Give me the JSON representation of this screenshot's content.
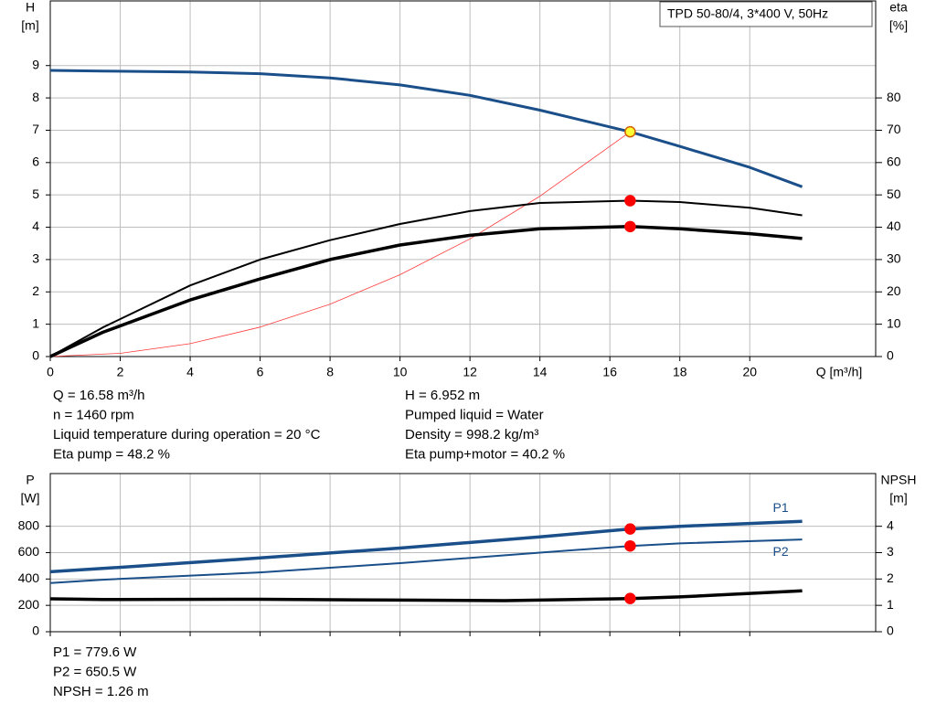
{
  "chart_data": [
    {
      "type": "line",
      "title": "TPD 50-80/4, 3*400 V, 50Hz",
      "ylabel": [
        "H",
        "[m]"
      ],
      "y2label": [
        "eta",
        "[%]"
      ],
      "xlabel": "Q [m³/h]",
      "xlim": [
        0,
        23.6
      ],
      "xticks": [
        0,
        2,
        4,
        6,
        8,
        10,
        12,
        14,
        16,
        18,
        20
      ],
      "xtick_labels": true,
      "ylim": [
        0,
        11
      ],
      "yticks": [
        0,
        1,
        2,
        3,
        4,
        5,
        6,
        7,
        8,
        9
      ],
      "y2lim": [
        0,
        110
      ],
      "y2ticks": [
        0,
        10,
        20,
        30,
        40,
        50,
        60,
        70,
        80
      ],
      "grid": true,
      "series": [
        {
          "type": "line",
          "color": "#ff3b3b",
          "width": 0.8,
          "x": [
            0,
            2,
            4,
            6,
            8,
            10,
            12,
            14,
            16.58
          ],
          "values": [
            0,
            0.1,
            0.4,
            0.91,
            1.62,
            2.53,
            3.64,
            4.96,
            6.952
          ]
        },
        {
          "type": "line",
          "color": "#1a4f8a",
          "width": 3,
          "x": [
            0,
            1.5,
            4,
            6,
            8,
            10,
            12,
            14,
            16.58,
            18,
            20,
            21.5
          ],
          "values": [
            8.85,
            8.83,
            8.8,
            8.75,
            8.62,
            8.4,
            8.08,
            7.62,
            6.952,
            6.5,
            5.85,
            5.25
          ]
        },
        {
          "type": "line",
          "axis": "y2",
          "color": "#000000",
          "width": 2,
          "x": [
            0,
            1.5,
            4,
            6,
            8,
            10,
            12,
            14,
            16.58,
            18,
            20,
            21.5
          ],
          "values": [
            0,
            9,
            22,
            30,
            36,
            41,
            45,
            47.5,
            48.2,
            47.8,
            46,
            43.7
          ]
        },
        {
          "type": "line",
          "axis": "y2",
          "color": "#000000",
          "width": 3.5,
          "x": [
            0,
            1.5,
            4,
            6,
            8,
            10,
            12,
            14,
            16.58,
            18,
            20,
            21.5
          ],
          "values": [
            0,
            7.5,
            17.5,
            24,
            30,
            34.5,
            37.5,
            39.5,
            40.2,
            39.5,
            38,
            36.5
          ]
        },
        {
          "type": "scatter",
          "axis": "y2",
          "color": "#ff0000",
          "x": [
            16.58
          ],
          "values": [
            48.2
          ]
        },
        {
          "type": "scatter",
          "axis": "y2",
          "color": "#ff0000",
          "x": [
            16.58
          ],
          "values": [
            40.2
          ]
        },
        {
          "type": "scatter",
          "color": "#ffff33",
          "edgecolor": "#d06000",
          "x": [
            16.58
          ],
          "values": [
            6.952
          ]
        }
      ],
      "info": [
        [
          "Q = 16.58 m³/h",
          "n = 1460 rpm",
          "Liquid temperature during operation = 20 °C",
          "Eta pump = 48.2 %"
        ],
        [
          "H = 6.952 m",
          "Pumped liquid = Water",
          "Density = 998.2 kg/m³",
          "Eta pump+motor = 40.2 %"
        ]
      ]
    },
    {
      "type": "line",
      "ylabel": [
        "P",
        "[W]"
      ],
      "y2label": [
        "NPSH",
        "[m]"
      ],
      "xlim": [
        0,
        23.6
      ],
      "xticks": [
        0,
        2,
        4,
        6,
        8,
        10,
        12,
        14,
        16,
        18,
        20
      ],
      "xtick_labels": false,
      "ylim": [
        0,
        1200
      ],
      "yticks": [
        0,
        200,
        400,
        600,
        800
      ],
      "y2lim": [
        0,
        6
      ],
      "y2ticks": [
        0,
        1,
        2,
        3,
        4
      ],
      "grid": true,
      "series": [
        {
          "type": "line",
          "name": "P1",
          "color": "#1a4f8a",
          "width": 3.5,
          "x": [
            0,
            1.5,
            6,
            10,
            14,
            16.58,
            18,
            21.5
          ],
          "values": [
            455,
            480,
            560,
            635,
            720,
            779.6,
            800,
            838
          ]
        },
        {
          "type": "line",
          "name": "P2",
          "color": "#1a4f8a",
          "width": 2,
          "x": [
            0,
            1.5,
            6,
            10,
            14,
            16.58,
            18,
            21.5
          ],
          "values": [
            370,
            395,
            450,
            520,
            600,
            650.5,
            670,
            700
          ]
        },
        {
          "type": "line",
          "axis": "y2",
          "color": "#000000",
          "width": 3.5,
          "x": [
            0,
            1.5,
            6,
            10,
            13,
            16.58,
            18,
            21.5
          ],
          "values": [
            1.25,
            1.22,
            1.23,
            1.2,
            1.18,
            1.26,
            1.32,
            1.55
          ]
        },
        {
          "type": "scatter",
          "color": "#ff0000",
          "x": [
            16.58
          ],
          "values": [
            779.6
          ]
        },
        {
          "type": "scatter",
          "color": "#ff0000",
          "x": [
            16.58
          ],
          "values": [
            650.5
          ]
        },
        {
          "type": "scatter",
          "axis": "y2",
          "color": "#ff0000",
          "x": [
            16.58
          ],
          "values": [
            1.26
          ]
        }
      ],
      "info": [
        [
          "P1 = 779.6 W",
          "P2 = 650.5 W",
          "NPSH = 1.26 m"
        ]
      ]
    }
  ]
}
